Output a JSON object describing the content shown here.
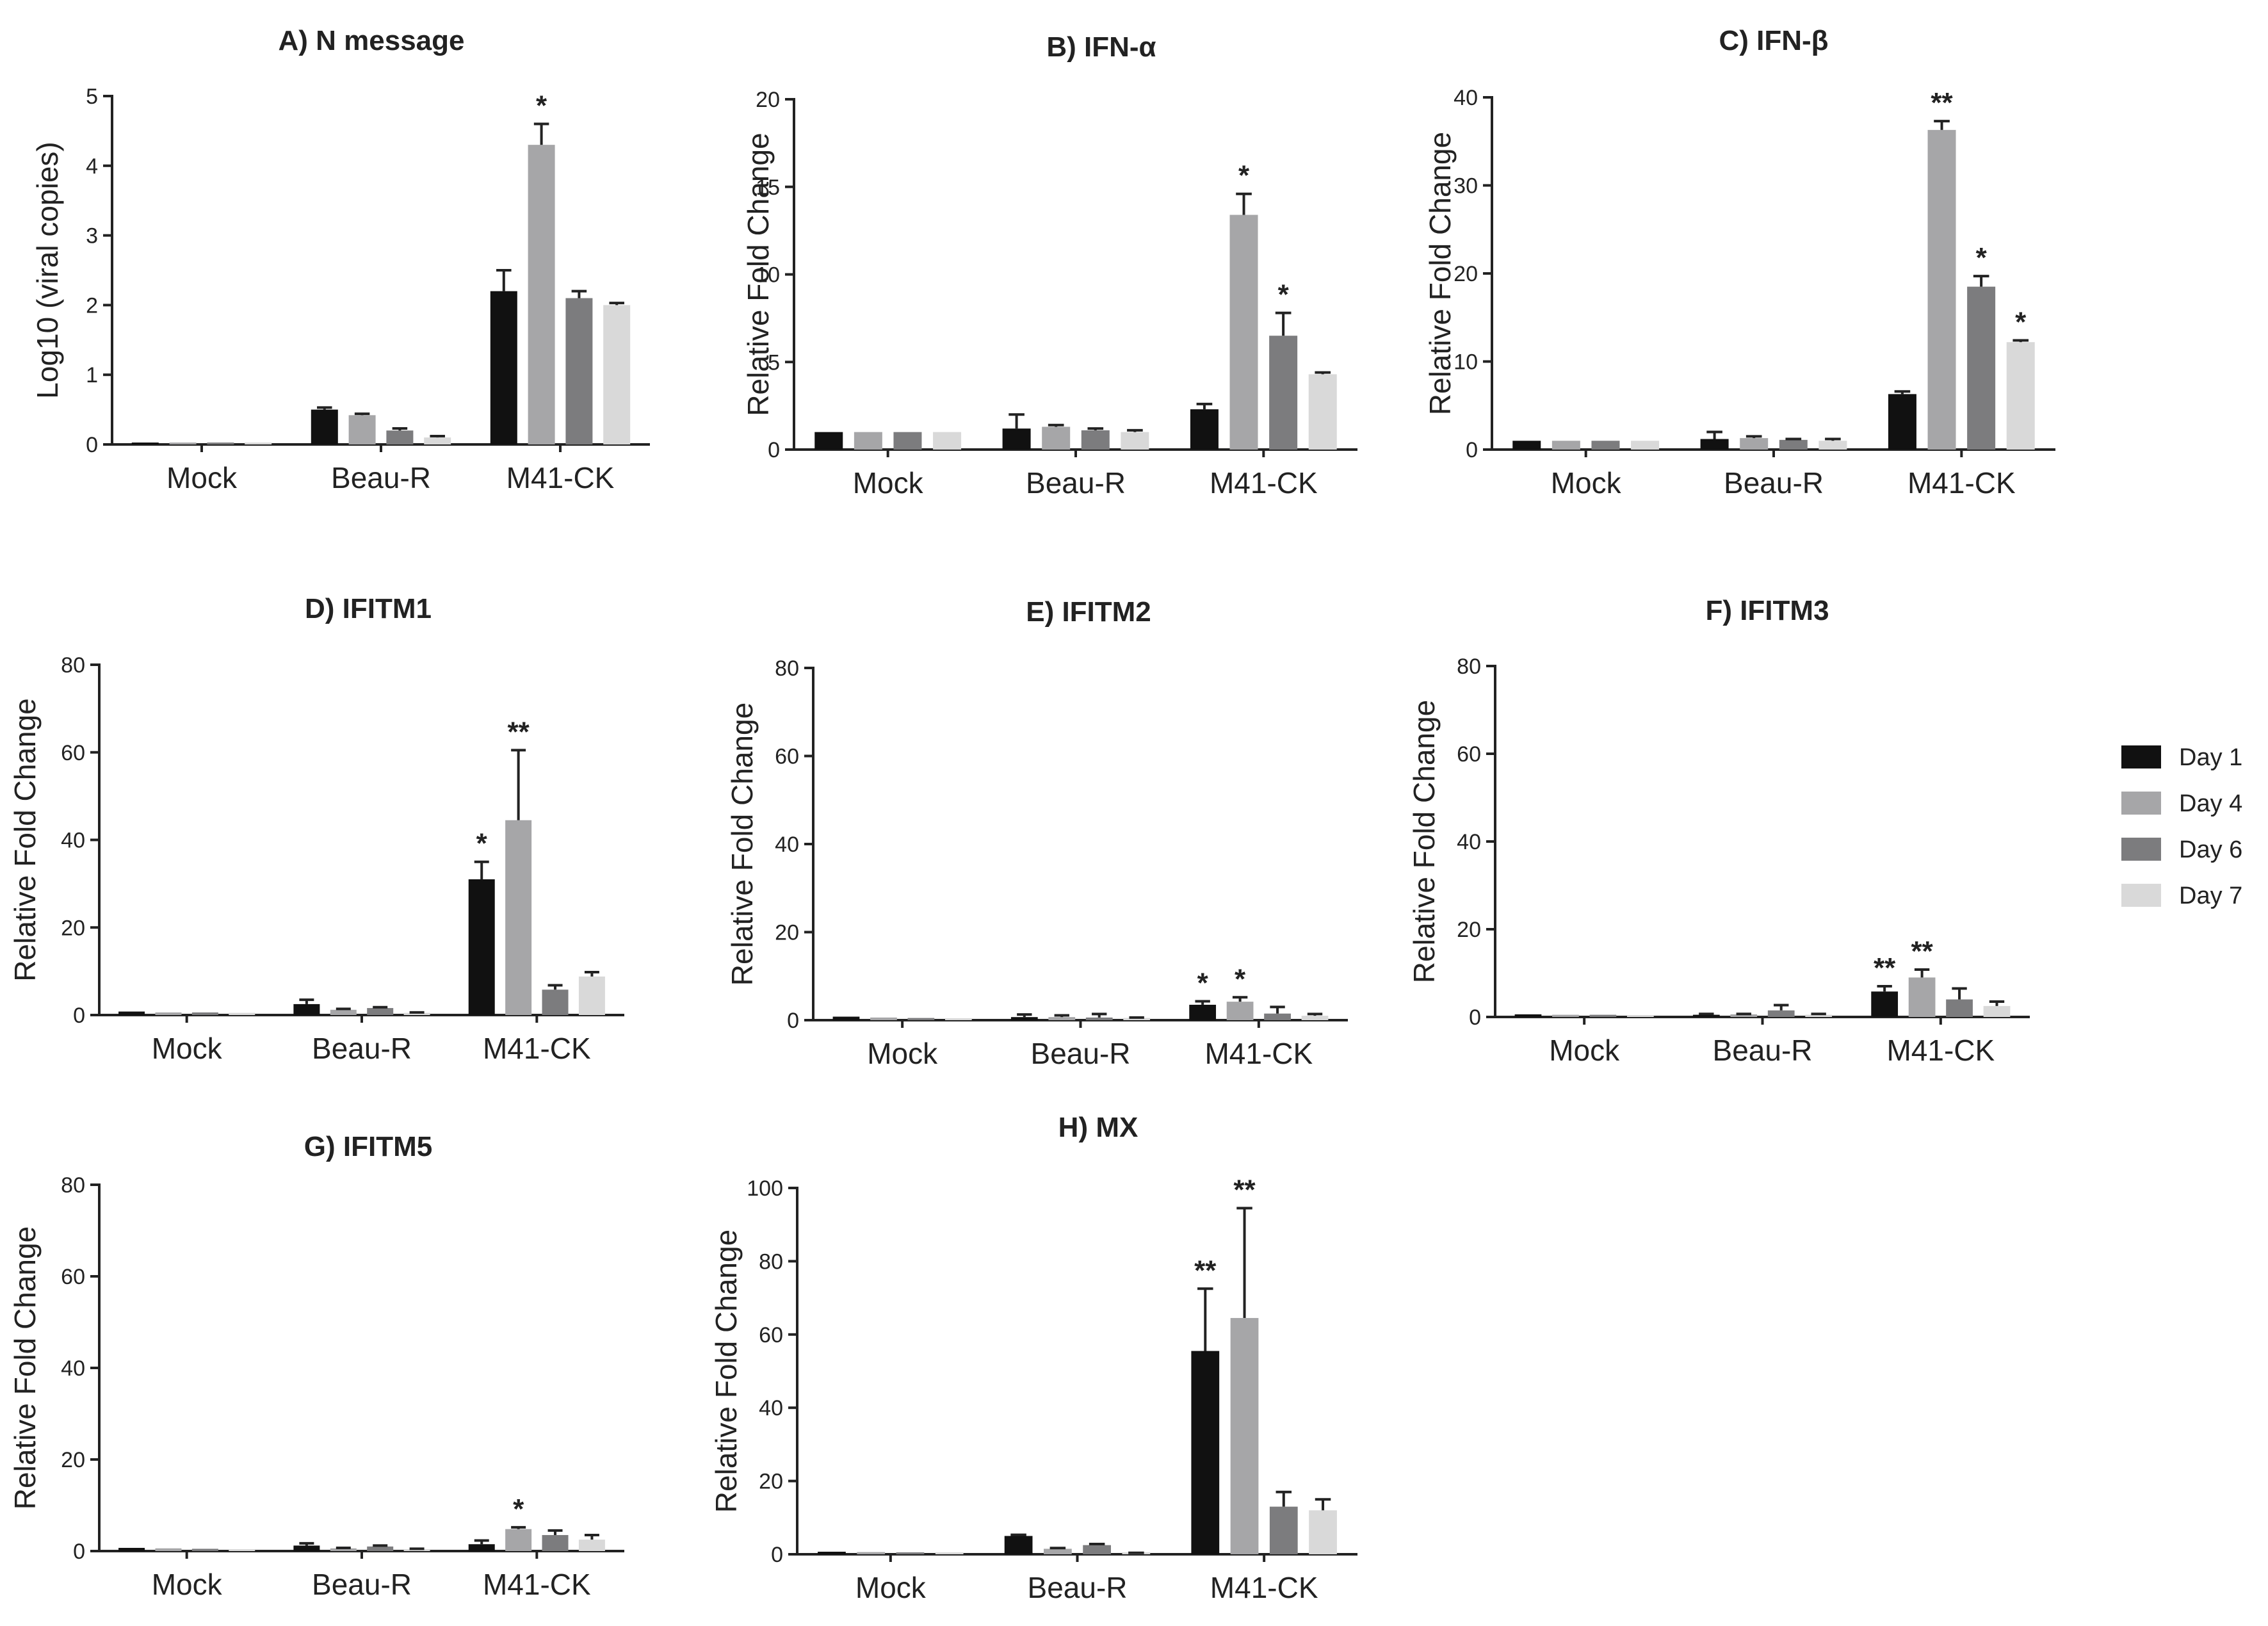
{
  "chart_data": [
    {
      "id": "A",
      "type": "bar",
      "title": "A) N message",
      "ylabel": "Log10 (viral copies)",
      "xlabel": "",
      "ylim": [
        0,
        5
      ],
      "yticks": [
        0,
        1,
        2,
        3,
        4,
        5
      ],
      "categories": [
        "Mock",
        "Beau-R",
        "M41-CK"
      ],
      "series": [
        {
          "name": "Day 1",
          "values": [
            0,
            0.5,
            2.2
          ],
          "errors": [
            0,
            0.03,
            0.3
          ]
        },
        {
          "name": "Day 4",
          "values": [
            0,
            0.42,
            4.3
          ],
          "errors": [
            0,
            0.02,
            0.3
          ]
        },
        {
          "name": "Day 6",
          "values": [
            0,
            0.2,
            2.1
          ],
          "errors": [
            0,
            0.03,
            0.1
          ]
        },
        {
          "name": "Day 7",
          "values": [
            0,
            0.1,
            2.0
          ],
          "errors": [
            0,
            0.02,
            0.03
          ]
        }
      ],
      "annotations": [
        {
          "category": 2,
          "series": 1,
          "text": "*"
        }
      ]
    },
    {
      "id": "B",
      "type": "bar",
      "title": "B) IFN-α",
      "ylabel": "Relative  Fold Change",
      "xlabel": "",
      "ylim": [
        0,
        20
      ],
      "yticks": [
        0,
        5,
        10,
        15,
        20
      ],
      "categories": [
        "Mock",
        "Beau-R",
        "M41-CK"
      ],
      "series": [
        {
          "name": "Day 1",
          "values": [
            1.0,
            1.2,
            2.3
          ],
          "errors": [
            0,
            0.8,
            0.3
          ]
        },
        {
          "name": "Day 4",
          "values": [
            1.0,
            1.3,
            13.4
          ],
          "errors": [
            0,
            0.1,
            1.2
          ]
        },
        {
          "name": "Day 6",
          "values": [
            1.0,
            1.1,
            6.5
          ],
          "errors": [
            0,
            0.1,
            1.3
          ]
        },
        {
          "name": "Day 7",
          "values": [
            1.0,
            1.0,
            4.3
          ],
          "errors": [
            0,
            0.1,
            0.1
          ]
        }
      ],
      "annotations": [
        {
          "category": 2,
          "series": 1,
          "text": "*"
        },
        {
          "category": 2,
          "series": 2,
          "text": "*"
        }
      ]
    },
    {
      "id": "C",
      "type": "bar",
      "title": "C) IFN-β",
      "ylabel": "Relative  Fold Change",
      "xlabel": "",
      "ylim": [
        0,
        40
      ],
      "yticks": [
        0,
        10,
        20,
        30,
        40
      ],
      "categories": [
        "Mock",
        "Beau-R",
        "M41-CK"
      ],
      "series": [
        {
          "name": "Day 1",
          "values": [
            1.0,
            1.2,
            6.3
          ],
          "errors": [
            0,
            0.8,
            0.3
          ]
        },
        {
          "name": "Day 4",
          "values": [
            1.0,
            1.3,
            36.3
          ],
          "errors": [
            0,
            0.2,
            1.0
          ]
        },
        {
          "name": "Day 6",
          "values": [
            1.0,
            1.1,
            18.5
          ],
          "errors": [
            0,
            0.1,
            1.2
          ]
        },
        {
          "name": "Day 7",
          "values": [
            1.0,
            1.0,
            12.2
          ],
          "errors": [
            0,
            0.2,
            0.2
          ]
        }
      ],
      "annotations": [
        {
          "category": 2,
          "series": 1,
          "text": "**"
        },
        {
          "category": 2,
          "series": 2,
          "text": "*"
        },
        {
          "category": 2,
          "series": 3,
          "text": "*"
        }
      ]
    },
    {
      "id": "D",
      "type": "bar",
      "title": "D) IFITM1",
      "ylabel": "Relative Fold Change",
      "xlabel": "",
      "ylim": [
        0,
        80
      ],
      "yticks": [
        0,
        20,
        40,
        60,
        80
      ],
      "categories": [
        "Mock",
        "Beau-R",
        "M41-CK"
      ],
      "series": [
        {
          "name": "Day 1",
          "values": [
            0.8,
            2.5,
            31
          ],
          "errors": [
            0,
            1.0,
            4.0
          ]
        },
        {
          "name": "Day 4",
          "values": [
            0.6,
            1.2,
            44.5
          ],
          "errors": [
            0,
            0.2,
            16.0
          ]
        },
        {
          "name": "Day 6",
          "values": [
            0.6,
            1.6,
            5.8
          ],
          "errors": [
            0,
            0.2,
            1.0
          ]
        },
        {
          "name": "Day 7",
          "values": [
            0.5,
            0.5,
            8.8
          ],
          "errors": [
            0,
            0.1,
            1.0
          ]
        }
      ],
      "annotations": [
        {
          "category": 2,
          "series": 0,
          "text": "*"
        },
        {
          "category": 2,
          "series": 1,
          "text": "**"
        }
      ]
    },
    {
      "id": "E",
      "type": "bar",
      "title": "E) IFITM2",
      "ylabel": "Relative Fold Change",
      "xlabel": "",
      "ylim": [
        0,
        80
      ],
      "yticks": [
        0,
        20,
        40,
        60,
        80
      ],
      "categories": [
        "Mock",
        "Beau-R",
        "M41-CK"
      ],
      "series": [
        {
          "name": "Day 1",
          "values": [
            0.8,
            0.7,
            3.5
          ],
          "errors": [
            0,
            0.6,
            0.8
          ]
        },
        {
          "name": "Day 4",
          "values": [
            0.6,
            0.7,
            4.2
          ],
          "errors": [
            0,
            0.4,
            1.0
          ]
        },
        {
          "name": "Day 6",
          "values": [
            0.5,
            0.6,
            1.5
          ],
          "errors": [
            0,
            0.8,
            1.5
          ]
        },
        {
          "name": "Day 7",
          "values": [
            0.4,
            0.5,
            1.0
          ],
          "errors": [
            0,
            0.1,
            0.4
          ]
        }
      ],
      "annotations": [
        {
          "category": 2,
          "series": 0,
          "text": "*"
        },
        {
          "category": 2,
          "series": 1,
          "text": "*"
        }
      ]
    },
    {
      "id": "F",
      "type": "bar",
      "title": "F) IFITM3",
      "ylabel": "Relative Fold Change",
      "xlabel": "",
      "ylim": [
        0,
        80
      ],
      "yticks": [
        0,
        20,
        40,
        60,
        80
      ],
      "categories": [
        "Mock",
        "Beau-R",
        "M41-CK"
      ],
      "series": [
        {
          "name": "Day 1",
          "values": [
            0.6,
            0.5,
            5.8
          ],
          "errors": [
            0,
            0.2,
            1.2
          ]
        },
        {
          "name": "Day 4",
          "values": [
            0.5,
            0.6,
            9.0
          ],
          "errors": [
            0,
            0.1,
            1.8
          ]
        },
        {
          "name": "Day 6",
          "values": [
            0.5,
            1.5,
            4.0
          ],
          "errors": [
            0,
            1.2,
            2.5
          ]
        },
        {
          "name": "Day 7",
          "values": [
            0.4,
            0.5,
            2.5
          ],
          "errors": [
            0,
            0.2,
            1.0
          ]
        }
      ],
      "annotations": [
        {
          "category": 2,
          "series": 0,
          "text": "**"
        },
        {
          "category": 2,
          "series": 1,
          "text": "**"
        }
      ]
    },
    {
      "id": "G",
      "type": "bar",
      "title": "G) IFITM5",
      "ylabel": "Relative  Fold Change",
      "xlabel": "",
      "ylim": [
        0,
        80
      ],
      "yticks": [
        0,
        20,
        40,
        60,
        80
      ],
      "categories": [
        "Mock",
        "Beau-R",
        "M41-CK"
      ],
      "series": [
        {
          "name": "Day 1",
          "values": [
            0.7,
            1.2,
            1.5
          ],
          "errors": [
            0,
            0.5,
            0.8
          ]
        },
        {
          "name": "Day 4",
          "values": [
            0.6,
            0.6,
            4.8
          ],
          "errors": [
            0,
            0.1,
            0.4
          ]
        },
        {
          "name": "Day 6",
          "values": [
            0.5,
            1.0,
            3.5
          ],
          "errors": [
            0,
            0.2,
            1.0
          ]
        },
        {
          "name": "Day 7",
          "values": [
            0.4,
            0.4,
            2.5
          ],
          "errors": [
            0,
            0.1,
            1.0
          ]
        }
      ],
      "annotations": [
        {
          "category": 2,
          "series": 1,
          "text": "*"
        }
      ]
    },
    {
      "id": "H",
      "type": "bar",
      "title": "H) MX",
      "ylabel": "Relative Fold Change",
      "xlabel": "",
      "ylim": [
        0,
        100
      ],
      "yticks": [
        0,
        20,
        40,
        60,
        80,
        100
      ],
      "categories": [
        "Mock",
        "Beau-R",
        "M41-CK"
      ],
      "series": [
        {
          "name": "Day 1",
          "values": [
            0.7,
            5.0,
            55.5
          ],
          "errors": [
            0,
            0.3,
            17.0
          ]
        },
        {
          "name": "Day 4",
          "values": [
            0.6,
            1.5,
            64.5
          ],
          "errors": [
            0,
            0.2,
            30.0
          ]
        },
        {
          "name": "Day 6",
          "values": [
            0.5,
            2.5,
            13.0
          ],
          "errors": [
            0,
            0.3,
            4.0
          ]
        },
        {
          "name": "Day 7",
          "values": [
            0.4,
            0.3,
            12.0
          ],
          "errors": [
            0,
            0.1,
            3.0
          ]
        }
      ],
      "annotations": [
        {
          "category": 2,
          "series": 0,
          "text": "**"
        },
        {
          "category": 2,
          "series": 1,
          "text": "**"
        }
      ]
    }
  ],
  "legend": {
    "position": "right",
    "items": [
      {
        "label": "Day 1",
        "color": "#111111"
      },
      {
        "label": "Day 4",
        "color": "#a6a6a8"
      },
      {
        "label": "Day 6",
        "color": "#7c7c7e"
      },
      {
        "label": "Day 7",
        "color": "#d9d9d9"
      }
    ]
  },
  "colors": {
    "axis": "#222222",
    "text": "#222222"
  }
}
